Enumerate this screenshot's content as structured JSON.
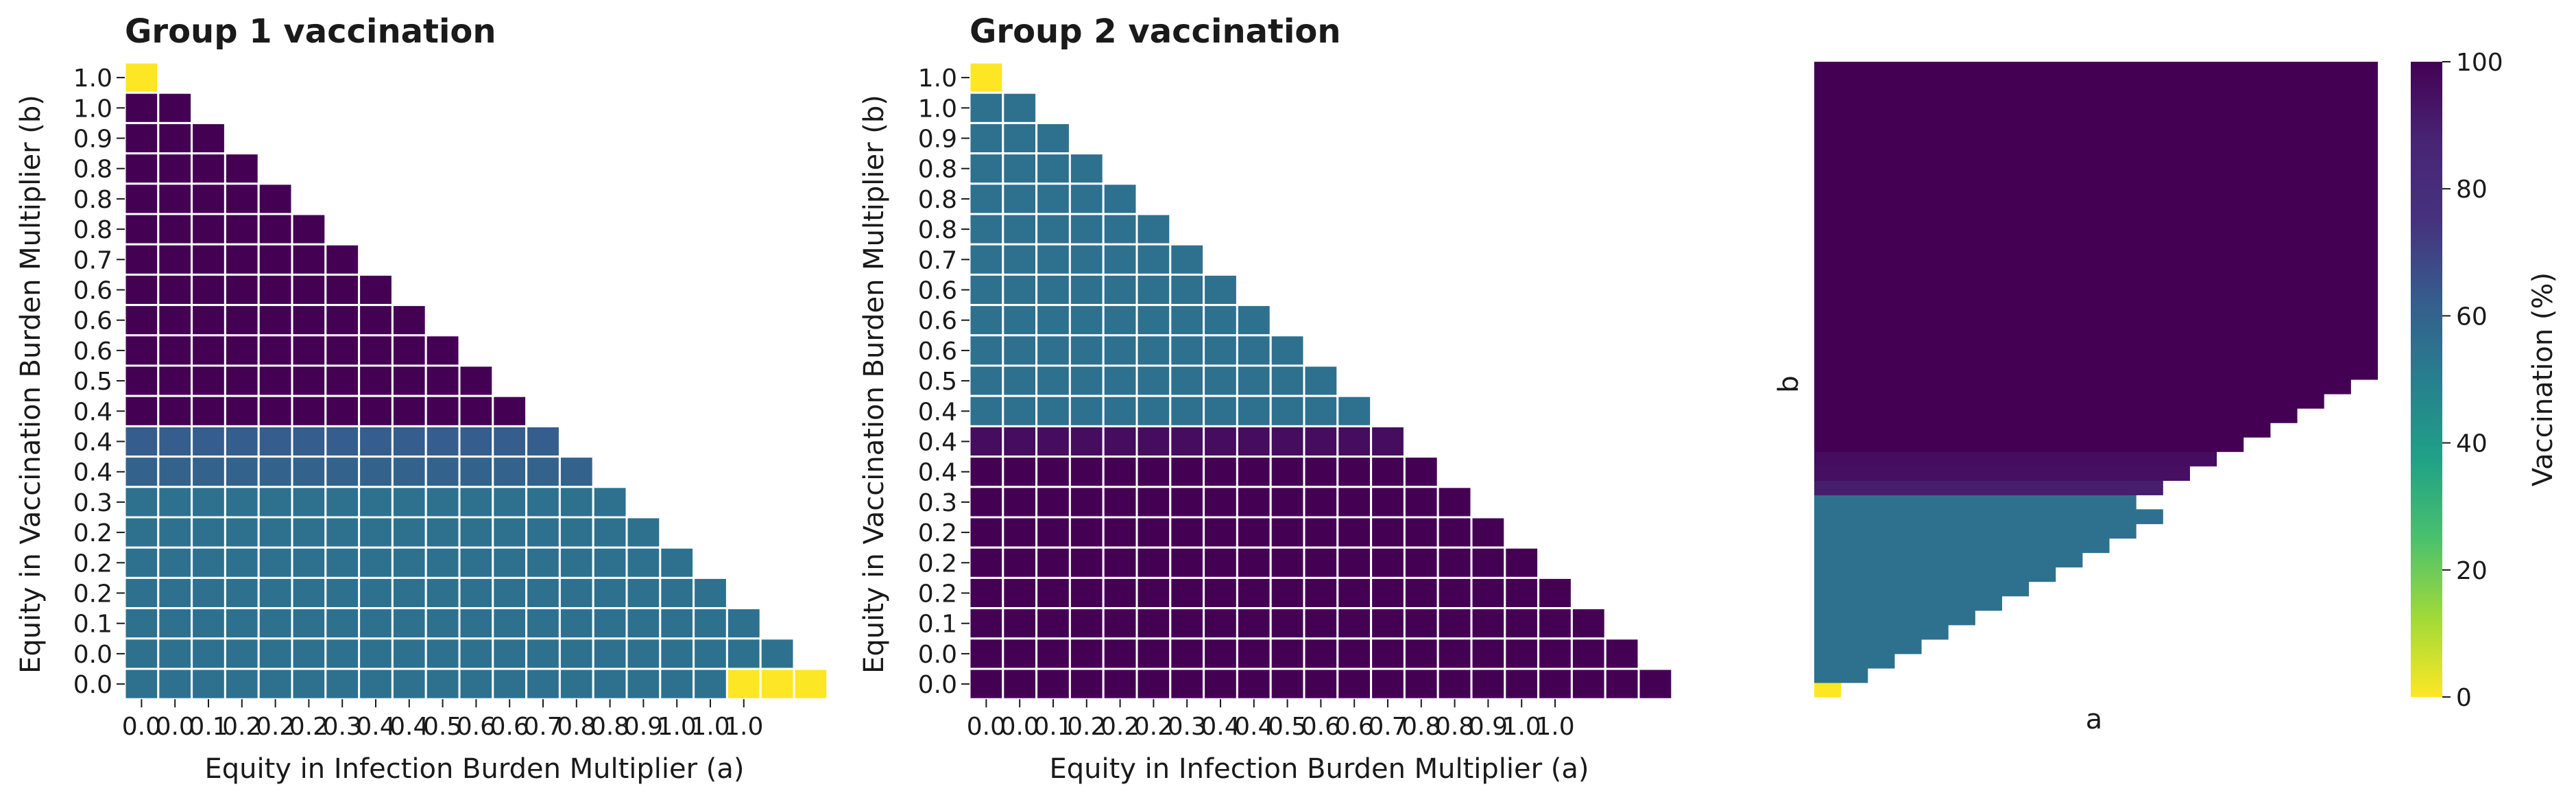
{
  "chart_data": [
    {
      "type": "heatmap",
      "title": "Group 1 vaccination",
      "xlabel": "Equity in Infection Burden Multiplier (a)",
      "ylabel": "Equity in Vaccination Burden Multiplier (b)",
      "x_tick_labels": [
        "0.0",
        "0.0",
        "0.1",
        "0.2",
        "0.2",
        "0.2",
        "0.3",
        "0.4",
        "0.4",
        "0.5",
        "0.6",
        "0.6",
        "0.7",
        "0.8",
        "0.8",
        "0.9",
        "1.0",
        "1.0",
        "1.0"
      ],
      "y_tick_labels": [
        "1.0",
        "1.0",
        "0.9",
        "0.8",
        "0.8",
        "0.8",
        "0.7",
        "0.6",
        "0.6",
        "0.6",
        "0.5",
        "0.4",
        "0.4",
        "0.4",
        "0.3",
        "0.2",
        "0.2",
        "0.2",
        "0.1",
        "0.0",
        "0.0"
      ],
      "cell_values": [
        [
          0
        ],
        [
          100,
          100
        ],
        [
          100,
          100,
          100
        ],
        [
          100,
          100,
          100,
          100
        ],
        [
          100,
          100,
          100,
          100,
          100
        ],
        [
          100,
          100,
          100,
          100,
          100,
          100
        ],
        [
          100,
          100,
          100,
          100,
          100,
          100,
          100
        ],
        [
          100,
          100,
          100,
          100,
          100,
          100,
          100,
          100
        ],
        [
          100,
          100,
          100,
          100,
          100,
          100,
          100,
          100,
          100
        ],
        [
          100,
          100,
          100,
          100,
          100,
          100,
          100,
          100,
          100,
          100
        ],
        [
          100,
          100,
          100,
          100,
          100,
          100,
          100,
          100,
          100,
          100,
          100
        ],
        [
          100,
          100,
          100,
          100,
          100,
          100,
          100,
          100,
          100,
          100,
          100,
          100
        ],
        [
          62,
          62,
          62,
          62,
          62,
          62,
          62,
          62,
          62,
          62,
          62,
          62,
          62
        ],
        [
          60,
          60,
          60,
          60,
          60,
          60,
          60,
          60,
          60,
          60,
          60,
          60,
          60,
          60
        ],
        [
          55,
          55,
          55,
          55,
          55,
          55,
          55,
          55,
          55,
          55,
          55,
          55,
          55,
          55,
          55
        ],
        [
          55,
          55,
          55,
          55,
          55,
          55,
          55,
          55,
          55,
          55,
          55,
          55,
          55,
          55,
          55,
          55
        ],
        [
          55,
          55,
          55,
          55,
          55,
          55,
          55,
          55,
          55,
          55,
          55,
          55,
          55,
          55,
          55,
          55,
          55
        ],
        [
          55,
          55,
          55,
          55,
          55,
          55,
          55,
          55,
          55,
          55,
          55,
          55,
          55,
          55,
          55,
          55,
          55,
          55
        ],
        [
          55,
          55,
          55,
          55,
          55,
          55,
          55,
          55,
          55,
          55,
          55,
          55,
          55,
          55,
          55,
          55,
          55,
          55,
          55
        ],
        [
          55,
          55,
          55,
          55,
          55,
          55,
          55,
          55,
          55,
          55,
          55,
          55,
          55,
          55,
          55,
          55,
          55,
          55,
          55,
          55
        ],
        [
          55,
          55,
          55,
          55,
          55,
          55,
          55,
          55,
          55,
          55,
          55,
          55,
          55,
          55,
          55,
          55,
          55,
          55,
          0,
          0,
          0
        ]
      ],
      "color_scale": "viridis_r",
      "zlim": [
        0,
        100
      ],
      "grid": "white cell borders"
    },
    {
      "type": "heatmap",
      "title": "Group 2 vaccination",
      "xlabel": "Equity in Infection Burden Multiplier (a)",
      "ylabel": "Equity in Vaccination Burden Multiplier (b)",
      "x_tick_labels": [
        "0.0",
        "0.0",
        "0.1",
        "0.2",
        "0.2",
        "0.2",
        "0.3",
        "0.4",
        "0.4",
        "0.5",
        "0.6",
        "0.6",
        "0.7",
        "0.8",
        "0.8",
        "0.9",
        "1.0",
        "1.0"
      ],
      "y_tick_labels": [
        "1.0",
        "1.0",
        "0.9",
        "0.8",
        "0.8",
        "0.8",
        "0.7",
        "0.6",
        "0.6",
        "0.6",
        "0.5",
        "0.4",
        "0.4",
        "0.4",
        "0.3",
        "0.2",
        "0.2",
        "0.2",
        "0.1",
        "0.0",
        "0.0"
      ],
      "cell_values": [
        [
          0
        ],
        [
          55,
          55
        ],
        [
          55,
          55,
          55
        ],
        [
          55,
          55,
          55,
          55
        ],
        [
          55,
          55,
          55,
          55,
          55
        ],
        [
          55,
          55,
          55,
          55,
          55,
          55
        ],
        [
          55,
          55,
          55,
          55,
          55,
          55,
          55
        ],
        [
          55,
          55,
          55,
          55,
          55,
          55,
          55,
          55
        ],
        [
          55,
          55,
          55,
          55,
          55,
          55,
          55,
          55,
          55
        ],
        [
          55,
          55,
          55,
          55,
          55,
          55,
          55,
          55,
          55,
          55
        ],
        [
          55,
          55,
          55,
          55,
          55,
          55,
          55,
          55,
          55,
          55,
          55
        ],
        [
          55,
          55,
          55,
          55,
          55,
          55,
          55,
          55,
          55,
          55,
          55,
          55
        ],
        [
          96,
          96,
          96,
          96,
          96,
          96,
          96,
          96,
          96,
          96,
          96,
          96,
          96
        ],
        [
          100,
          100,
          100,
          100,
          100,
          100,
          100,
          100,
          100,
          100,
          100,
          100,
          100,
          100
        ],
        [
          100,
          100,
          100,
          100,
          100,
          100,
          100,
          100,
          100,
          100,
          100,
          100,
          100,
          100,
          100
        ],
        [
          100,
          100,
          100,
          100,
          100,
          100,
          100,
          100,
          100,
          100,
          100,
          100,
          100,
          100,
          100,
          100
        ],
        [
          100,
          100,
          100,
          100,
          100,
          100,
          100,
          100,
          100,
          100,
          100,
          100,
          100,
          100,
          100,
          100,
          100
        ],
        [
          100,
          100,
          100,
          100,
          100,
          100,
          100,
          100,
          100,
          100,
          100,
          100,
          100,
          100,
          100,
          100,
          100,
          100
        ],
        [
          100,
          100,
          100,
          100,
          100,
          100,
          100,
          100,
          100,
          100,
          100,
          100,
          100,
          100,
          100,
          100,
          100,
          100,
          100
        ],
        [
          100,
          100,
          100,
          100,
          100,
          100,
          100,
          100,
          100,
          100,
          100,
          100,
          100,
          100,
          100,
          100,
          100,
          100,
          100,
          100
        ],
        [
          100,
          100,
          100,
          100,
          100,
          100,
          100,
          100,
          100,
          100,
          100,
          100,
          100,
          100,
          100,
          100,
          100,
          100,
          100,
          100,
          100
        ]
      ],
      "color_scale": "viridis_r",
      "zlim": [
        0,
        100
      ],
      "grid": "white cell borders"
    },
    {
      "type": "heatmap",
      "title": "",
      "xlabel": "a",
      "ylabel": "b",
      "row_values": [
        0,
        55,
        55,
        55,
        55,
        55,
        55,
        55,
        55,
        55,
        55,
        55,
        55,
        55,
        90,
        95,
        96,
        100,
        100,
        100,
        100,
        100,
        100,
        100,
        100,
        100,
        100,
        100,
        100,
        100,
        100,
        100,
        100,
        100,
        100,
        100,
        100,
        100,
        100,
        100,
        100,
        100,
        100,
        100
      ],
      "row_lengths": [
        1,
        2,
        3,
        4,
        5,
        6,
        7,
        8,
        9,
        10,
        11,
        12,
        13,
        12,
        13,
        14,
        15,
        16,
        17,
        18,
        19,
        20,
        21,
        21,
        21,
        21,
        21,
        21,
        21,
        21,
        21,
        21,
        21,
        21,
        21,
        21,
        21,
        21,
        21,
        21,
        21,
        21,
        21,
        21
      ],
      "color_scale": "viridis_r",
      "zlim": [
        0,
        100
      ],
      "colorbar": {
        "label": "Vaccination (%)",
        "ticks": [
          "0",
          "20",
          "40",
          "60",
          "80",
          "100"
        ]
      }
    }
  ]
}
